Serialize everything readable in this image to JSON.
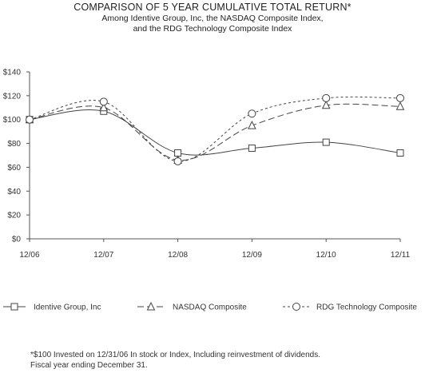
{
  "chart_data": {
    "type": "line",
    "title": "COMPARISON OF 5 YEAR CUMULATIVE TOTAL RETURN*",
    "subtitle_lines": [
      "Among Identive Group, Inc, the NASDAQ Composite Index,",
      "and the RDG Technology Composite Index"
    ],
    "categories": [
      "12/06",
      "12/07",
      "12/08",
      "12/09",
      "12/10",
      "12/11"
    ],
    "y_tick_labels": [
      "$0",
      "$20",
      "$40",
      "$60",
      "$80",
      "$100",
      "$120",
      "$140"
    ],
    "ylim": [
      0,
      140
    ],
    "y_step": 20,
    "grid": false,
    "legend_position": "bottom",
    "series": [
      {
        "name": "Identive Group, Inc",
        "marker": "square",
        "dash": "solid",
        "values": [
          100,
          107,
          72,
          76,
          81,
          72
        ]
      },
      {
        "name": "NASDAQ Composite",
        "marker": "triangle",
        "dash": "dashed",
        "values": [
          100,
          110,
          66,
          95,
          112,
          111
        ]
      },
      {
        "name": "RDG Technology Composite",
        "marker": "circle",
        "dash": "dotted",
        "values": [
          100,
          115,
          65,
          105,
          118,
          118
        ]
      }
    ],
    "footnotes": [
      "*$100 Invested on 12/31/06 In stock or Index, Including reinvestment of dividends.",
      "Fiscal year ending December 31."
    ]
  }
}
